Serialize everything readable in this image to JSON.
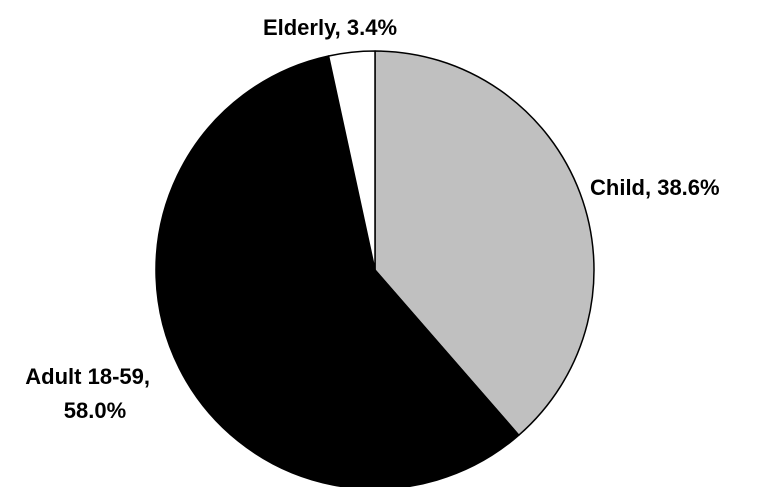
{
  "chart_data": {
    "type": "pie",
    "start_angle_deg": 0,
    "direction": "clockwise",
    "slices": [
      {
        "label": "Child",
        "value": 38.6,
        "display": "Child, 38.6%",
        "color": "#c0c0c0"
      },
      {
        "label": "Adult 18-59",
        "value": 58.0,
        "display": "Adult 18-59,",
        "display2": "58.0%",
        "color": "#000000"
      },
      {
        "label": "Elderly",
        "value": 3.4,
        "display": "Elderly, 3.4%",
        "color": "#ffffff"
      }
    ],
    "outline_color": "#000000"
  }
}
